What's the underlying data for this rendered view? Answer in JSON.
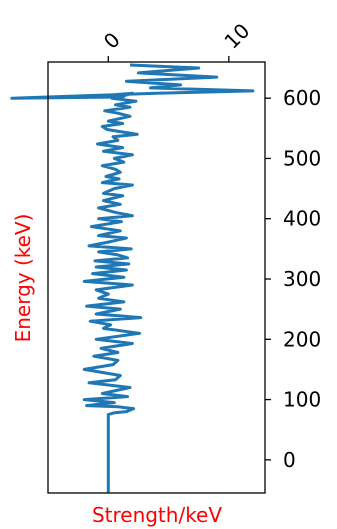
{
  "chart_data": {
    "type": "line",
    "title": "",
    "xlabel": "Strength/keV",
    "ylabel": "Energy (keV)",
    "xlabel_color": "#ff0000",
    "ylabel_color": "#ff0000",
    "line_color": "#1f77b4",
    "xlim": [
      -5,
      13
    ],
    "ylim": [
      -55,
      660
    ],
    "x_ticks": [
      {
        "value": 0,
        "label": "0"
      },
      {
        "value": 10,
        "label": "10"
      }
    ],
    "y_ticks": [
      {
        "value": 0,
        "label": "0"
      },
      {
        "value": 100,
        "label": "100"
      },
      {
        "value": 200,
        "label": "200"
      },
      {
        "value": 300,
        "label": "300"
      },
      {
        "value": 400,
        "label": "400"
      },
      {
        "value": 500,
        "label": "500"
      },
      {
        "value": 600,
        "label": "600"
      }
    ],
    "x_ticks_position": "top",
    "y_ticks_position": "right",
    "grid": false,
    "series": [
      {
        "x": [
          0,
          0,
          0,
          0,
          0,
          0.5,
          1.5,
          2.1,
          0.8,
          -1.8,
          0.5,
          -2.0,
          1.6,
          -0.5,
          1.8,
          -1.6,
          0.6,
          1.0,
          -2.0,
          0.4,
          0.8,
          -1.2,
          0.8,
          -0.6,
          2.0,
          -1.0,
          2.6,
          -0.4,
          0.2,
          -1.5,
          2.7,
          -1.0,
          1.0,
          -1.8,
          1.3,
          -0.8,
          0.0,
          -1.0,
          2.0,
          -2.0,
          1.3,
          -1.3,
          1.5,
          -1.0,
          1.7,
          -1.1,
          1.6,
          0.8,
          -0.8,
          1.9,
          -1.6,
          0.2,
          1.5,
          -0.8,
          1.0,
          -1.4,
          1.1,
          -0.8,
          2.0,
          0.7,
          -0.8,
          1.0,
          -0.4,
          1.2,
          -0.4,
          0.5,
          2.0,
          -0.5,
          0.9,
          -0.2,
          1.0,
          0.6,
          -0.5,
          1.3,
          0.5,
          2.0,
          -0.4,
          1.2,
          -0.9,
          0.8,
          0.4,
          2.4,
          -0.1,
          -0.5,
          1.2,
          0.0,
          1.8,
          0.8,
          -0.3,
          1.8,
          0.6,
          2.3,
          0.3,
          1.3,
          0.6,
          2.0,
          0.9,
          -8.0,
          4.0,
          12.0,
          3.5,
          6.0,
          1.5,
          9.0,
          2.5,
          7.5,
          1.8
        ],
        "y": [
          -55,
          0,
          25,
          50,
          75,
          78,
          80,
          85,
          88,
          90,
          95,
          100,
          105,
          110,
          120,
          128,
          133,
          140,
          150,
          158,
          165,
          172,
          178,
          185,
          193,
          200,
          210,
          218,
          224,
          230,
          236,
          242,
          250,
          255,
          262,
          268,
          275,
          282,
          290,
          296,
          303,
          309,
          315,
          320,
          325,
          330,
          335,
          340,
          345,
          350,
          355,
          362,
          368,
          372,
          380,
          387,
          395,
          400,
          405,
          410,
          418,
          424,
          430,
          438,
          442,
          450,
          456,
          460,
          466,
          470,
          477,
          482,
          488,
          494,
          500,
          506,
          512,
          518,
          524,
          530,
          536,
          540,
          548,
          553,
          558,
          562,
          570,
          575,
          579,
          585,
          589,
          595,
          600,
          603,
          606,
          608,
          602,
          600,
          608,
          612,
          617,
          622,
          628,
          635,
          642,
          650,
          655
        ]
      }
    ]
  }
}
